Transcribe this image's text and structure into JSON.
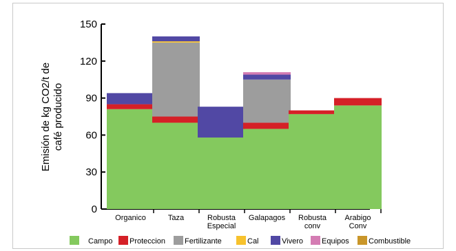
{
  "chart_data": {
    "type": "bar",
    "stacked": true,
    "categories": [
      "Organico",
      "Taza",
      "Robusta\nEspecial",
      "Galapagos",
      "Robusta\nconv",
      "Arabigo\nConv"
    ],
    "ylabel_lines": [
      "Emisión de kg CO2/t de",
      "café producido"
    ],
    "xlabel": "",
    "ylim": [
      0,
      150
    ],
    "yticks": [
      0,
      30,
      60,
      90,
      120,
      150
    ],
    "grid": false,
    "legend_position": "bottom",
    "series": [
      {
        "name": "Campo",
        "color": "#84c95e",
        "values": [
          81,
          70,
          58,
          65,
          77,
          84
        ]
      },
      {
        "name": "Proteccion",
        "color": "#d52027",
        "values": [
          4,
          5,
          0,
          5,
          3,
          6
        ]
      },
      {
        "name": "Fertilizante",
        "color": "#9d9d9d",
        "values": [
          0,
          60,
          0,
          35,
          0,
          0
        ]
      },
      {
        "name": "Cal",
        "color": "#f7c22d",
        "values": [
          0,
          1,
          0,
          0,
          0,
          0
        ]
      },
      {
        "name": "Vivero",
        "color": "#5148a4",
        "values": [
          9,
          4,
          25,
          4,
          0,
          0
        ]
      },
      {
        "name": "Equipos",
        "color": "#d47cb3",
        "values": [
          0,
          0,
          0,
          2,
          0,
          0
        ]
      },
      {
        "name": "Combustible",
        "color": "#c9962a",
        "values": [
          0,
          0,
          0,
          0,
          0,
          0
        ]
      }
    ]
  }
}
